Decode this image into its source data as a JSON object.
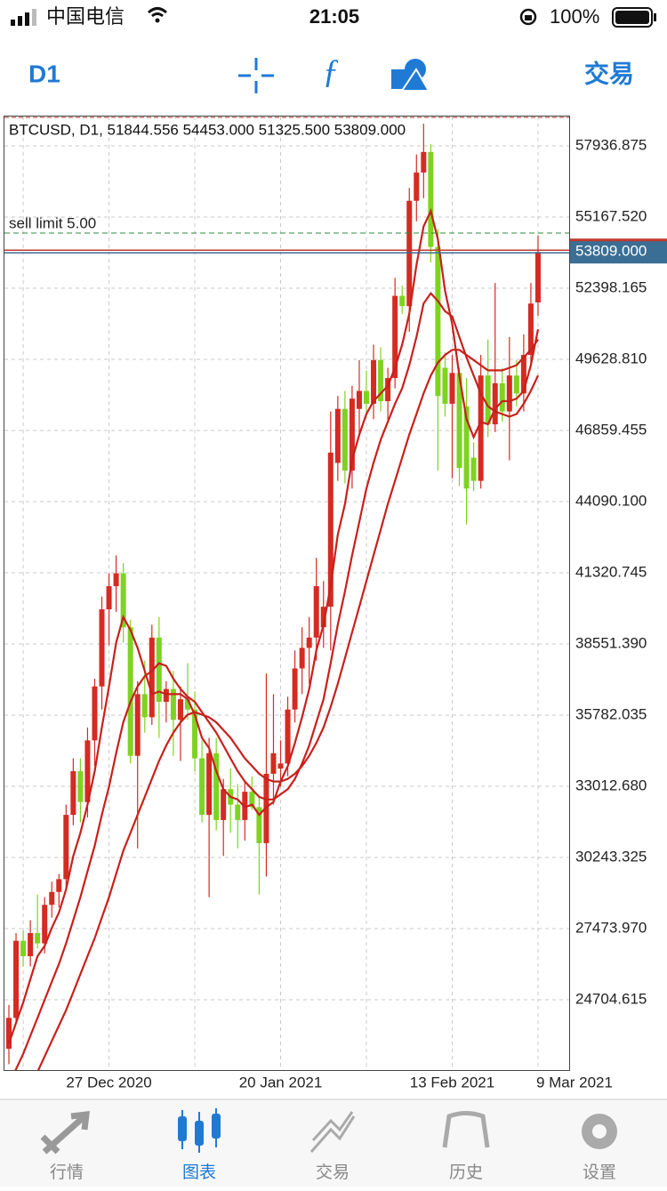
{
  "status_bar": {
    "carrier": "中国电信",
    "time": "21:05",
    "battery": "100%"
  },
  "toolbar": {
    "timeframe": "D1",
    "trade": "交易"
  },
  "chart_data": {
    "type": "candlestick",
    "title": "BTCUSD, D1, 51844.556 54453.000 51325.500 53809.000",
    "categories": [
      null,
      null,
      null,
      null,
      null,
      null,
      null,
      null,
      null,
      null,
      null,
      null,
      null,
      null,
      "27 Dec 2020",
      null,
      null,
      null,
      null,
      null,
      null,
      null,
      null,
      null,
      null,
      null,
      null,
      null,
      null,
      null,
      null,
      null,
      null,
      null,
      null,
      null,
      null,
      null,
      "20 Jan 2021",
      null,
      null,
      null,
      null,
      null,
      null,
      null,
      null,
      null,
      null,
      null,
      null,
      null,
      null,
      null,
      null,
      null,
      null,
      null,
      null,
      null,
      null,
      null,
      "13 Feb 2021",
      null,
      null,
      null,
      null,
      null,
      null,
      null,
      null,
      null,
      null,
      null,
      "9 Mar 2021"
    ],
    "open": [
      22800,
      24000,
      27000,
      26400,
      27300,
      26900,
      28400,
      28900,
      29400,
      31900,
      33600,
      32400,
      34800,
      36900,
      39900,
      40800,
      41300,
      39200,
      34200,
      36600,
      35700,
      38800,
      36300,
      36800,
      35600,
      36400,
      36000,
      34100,
      31900,
      34300,
      31700,
      32900,
      32300,
      31700,
      32800,
      32200,
      30800,
      33500,
      33700,
      33900,
      36000,
      37600,
      38400,
      38800,
      39200,
      40000,
      45600,
      47700,
      45300,
      47700,
      48400,
      47900,
      49600,
      48000,
      48900,
      52100,
      51700,
      55800,
      56900,
      57700,
      54000,
      49300,
      47900,
      49100,
      47800,
      45800,
      44900,
      49000,
      47100,
      48700,
      47600,
      49000,
      48300,
      49800,
      51844.556
    ],
    "high": [
      24500,
      27300,
      27400,
      27800,
      28800,
      28700,
      29300,
      29600,
      32300,
      34100,
      34100,
      35300,
      37200,
      40400,
      41300,
      42000,
      41700,
      39500,
      37100,
      37900,
      39300,
      39600,
      37100,
      37500,
      36900,
      37800,
      36700,
      34800,
      34900,
      34900,
      33300,
      33700,
      33100,
      33200,
      33400,
      32600,
      37400,
      36600,
      34800,
      36500,
      38300,
      39200,
      39600,
      41900,
      41000,
      47600,
      48200,
      48400,
      48600,
      49600,
      49200,
      50200,
      50100,
      49300,
      52800,
      52500,
      56300,
      57600,
      58800,
      58000,
      54700,
      49900,
      49800,
      49300,
      48900,
      46400,
      49800,
      50400,
      52600,
      49300,
      50500,
      49600,
      50600,
      52600,
      54453
    ],
    "low": [
      22200,
      23800,
      26000,
      26000,
      26700,
      26500,
      27900,
      28300,
      29000,
      31500,
      31600,
      31800,
      33800,
      36000,
      38500,
      39800,
      38600,
      33900,
      30600,
      35100,
      35400,
      34900,
      35500,
      34200,
      34000,
      35600,
      33600,
      31600,
      28700,
      31300,
      30300,
      31200,
      30600,
      30900,
      32100,
      28800,
      29500,
      32300,
      33000,
      33400,
      35500,
      36600,
      37000,
      37900,
      38400,
      38300,
      44900,
      44800,
      44600,
      46700,
      47500,
      47300,
      47600,
      47200,
      48500,
      51400,
      50700,
      55000,
      55900,
      53400,
      45300,
      47400,
      45000,
      44700,
      43200,
      44500,
      44600,
      46600,
      46800,
      47200,
      45700,
      47800,
      47600,
      49300,
      51325.5
    ],
    "close": [
      24000,
      27000,
      26400,
      27300,
      26900,
      28400,
      28900,
      29400,
      31900,
      33600,
      32400,
      34800,
      36900,
      39900,
      40800,
      41300,
      39200,
      34200,
      36600,
      35700,
      38800,
      36300,
      36800,
      35600,
      36400,
      36000,
      34100,
      31900,
      34300,
      31700,
      32900,
      32300,
      31700,
      32800,
      32200,
      30800,
      33500,
      34300,
      33900,
      36000,
      37600,
      38400,
      38800,
      40800,
      40000,
      46000,
      47700,
      45300,
      48100,
      48400,
      47900,
      49600,
      48000,
      48900,
      52100,
      51700,
      55800,
      56900,
      57700,
      54000,
      48200,
      47900,
      49100,
      45400,
      44600,
      44900,
      49000,
      47100,
      48700,
      47600,
      49000,
      48300,
      49800,
      51800,
      53809
    ],
    "up_color": "#d42b22",
    "down_color": "#7ed321",
    "moving_averages": [
      {
        "color": "#c8201c",
        "values": [
          23000,
          23800,
          24600,
          25500,
          26400,
          26800,
          27500,
          28100,
          29000,
          30300,
          31200,
          32300,
          33600,
          35300,
          36900,
          38600,
          39600,
          39100,
          38400,
          37500,
          36600,
          36700,
          36600,
          36600,
          36600,
          36400,
          35800,
          34900,
          34500,
          33600,
          32900,
          32600,
          32500,
          32200,
          32300,
          31900,
          32200,
          32400,
          33200,
          33800,
          34700,
          35700,
          36800,
          38300,
          39300,
          40800,
          42800,
          44000,
          45700,
          46700,
          47500,
          48000,
          48300,
          48600,
          49300,
          50200,
          51400,
          53300,
          54800,
          55400,
          54300,
          52300,
          51000,
          49000,
          47300,
          46600,
          47200,
          47100,
          47700,
          48000,
          48000,
          48100,
          48400,
          49400,
          50800
        ]
      },
      {
        "color": "#c8201c",
        "values": [
          21500,
          22000,
          22600,
          23300,
          24000,
          24700,
          25400,
          26100,
          26900,
          27800,
          28700,
          29700,
          30700,
          31900,
          33000,
          34300,
          35500,
          36300,
          36900,
          37300,
          37500,
          37800,
          37700,
          37200,
          36800,
          36500,
          36300,
          35900,
          35500,
          35100,
          34600,
          34100,
          33600,
          33200,
          32900,
          32600,
          32500,
          32500,
          32700,
          32900,
          33300,
          33900,
          34600,
          35500,
          36400,
          37800,
          39300,
          40600,
          42000,
          43300,
          44600,
          45600,
          46500,
          47200,
          47900,
          48500,
          49400,
          50500,
          51800,
          52200,
          51900,
          51500,
          51300,
          50500,
          49700,
          49000,
          48300,
          47800,
          47600,
          47500,
          47400,
          47500,
          47900,
          48400,
          49000
        ]
      },
      {
        "color": "#c8201c",
        "values": [
          19800,
          20300,
          20800,
          21300,
          21900,
          22500,
          23100,
          23700,
          24300,
          25000,
          25700,
          26400,
          27100,
          27900,
          28700,
          29600,
          30500,
          31200,
          31900,
          32600,
          33300,
          34000,
          34600,
          35100,
          35500,
          35800,
          35900,
          35800,
          35700,
          35500,
          35200,
          34900,
          34500,
          34100,
          33800,
          33500,
          33300,
          33200,
          33200,
          33300,
          33500,
          33800,
          34200,
          34700,
          35300,
          36100,
          37000,
          38000,
          39000,
          40000,
          41000,
          42000,
          43000,
          44000,
          44900,
          45800,
          46700,
          47500,
          48300,
          49000,
          49500,
          49800,
          50000,
          50000,
          49800,
          49600,
          49400,
          49200,
          49200,
          49200,
          49300,
          49400,
          49700,
          50000,
          50400
        ]
      }
    ],
    "ylim": [
      21970,
      59079
    ],
    "yticks": [
      57936.875,
      {
        "value": 55167.52,
        "label": "55167.520"
      },
      52398.165,
      {
        "value": 49628.81,
        "label": "49628.810"
      },
      46859.455,
      {
        "value": 44090.1,
        "label": "44090.100"
      },
      41320.745,
      {
        "value": 38551.39,
        "label": "38551.390"
      },
      35782.035,
      {
        "value": 33012.68,
        "label": "33012.680"
      },
      30243.325,
      {
        "value": 27473.97,
        "label": "27473.970"
      },
      24704.615
    ],
    "grid": true,
    "sell_limit": {
      "value": 54544,
      "label": "sell limit 5.00"
    },
    "price_line": {
      "value": 53809,
      "label": "53809.000"
    }
  },
  "tab_bar": {
    "tabs": [
      "行情",
      "图表",
      "交易",
      "历史",
      "设置"
    ]
  }
}
